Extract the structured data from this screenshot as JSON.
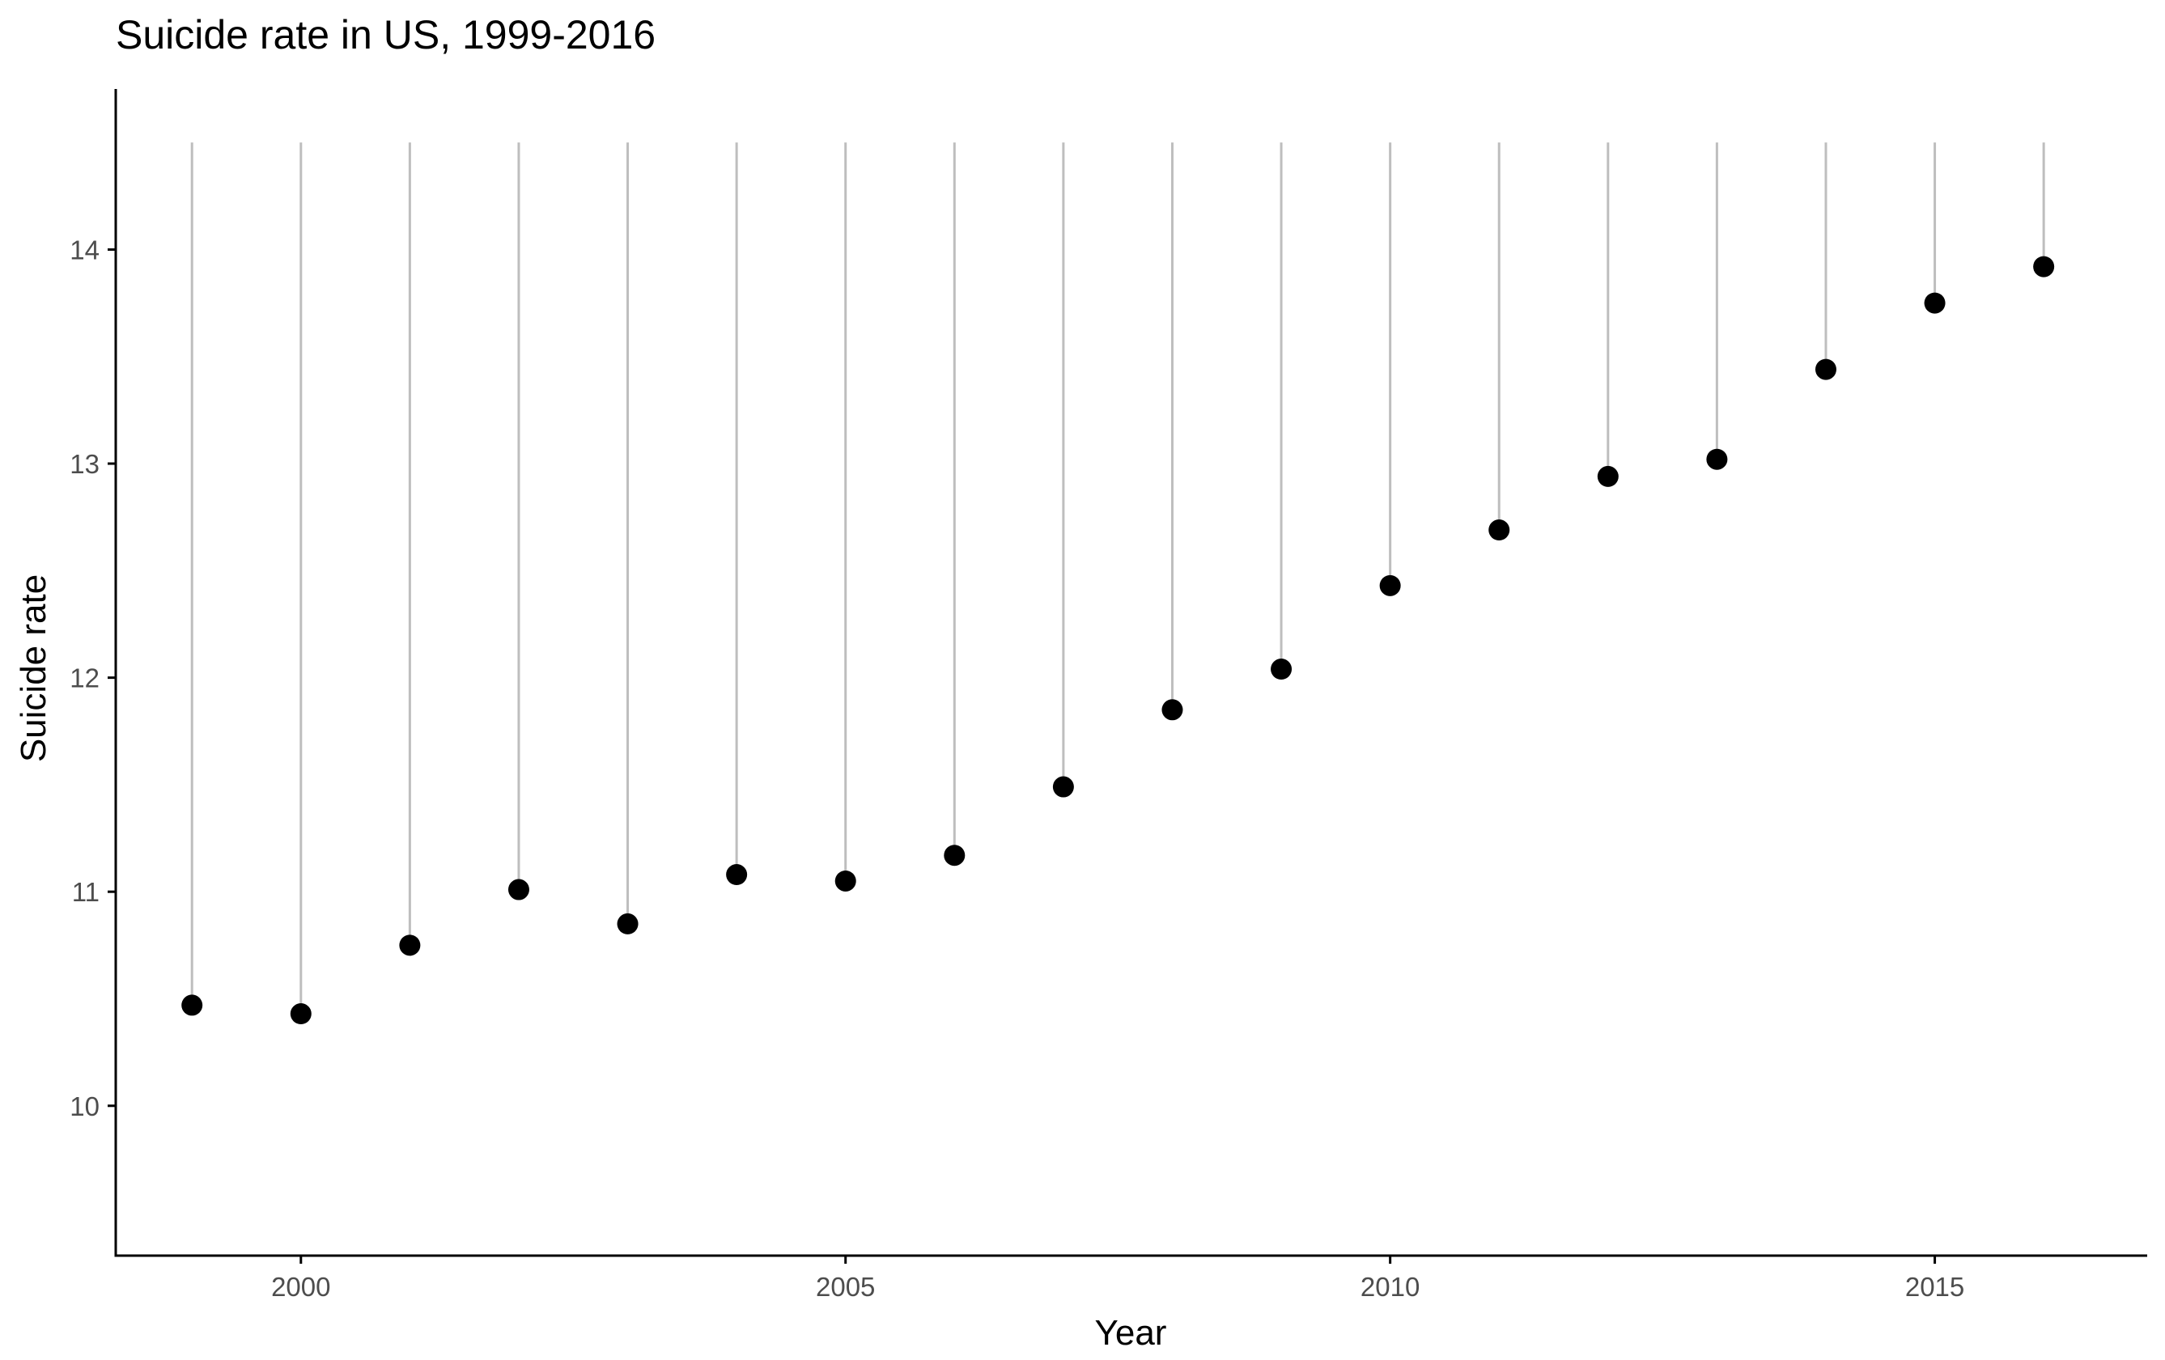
{
  "chart_data": {
    "type": "scatter",
    "style": "lollipop",
    "title": "Suicide rate in US, 1999-2016",
    "xlabel": "Year",
    "ylabel": "Suicide rate",
    "x": [
      1999,
      2000,
      2001,
      2002,
      2003,
      2004,
      2005,
      2006,
      2007,
      2008,
      2009,
      2010,
      2011,
      2012,
      2013,
      2014,
      2015,
      2016
    ],
    "y": [
      10.47,
      10.43,
      10.75,
      11.01,
      10.85,
      11.08,
      11.05,
      11.17,
      11.49,
      11.85,
      12.04,
      12.43,
      12.69,
      12.94,
      13.02,
      13.44,
      13.75,
      13.92
    ],
    "segment_top": 14.5,
    "xlim": [
      1998.3,
      2016.95
    ],
    "ylim": [
      9.3,
      14.75
    ],
    "x_ticks": [
      2000,
      2005,
      2010,
      2015
    ],
    "y_ticks": [
      10,
      11,
      12,
      13,
      14
    ],
    "grid": false,
    "colors": {
      "point": "#000000",
      "segment": "#bebebe",
      "axis": "#000000",
      "tick_label": "#4d4d4d"
    }
  }
}
